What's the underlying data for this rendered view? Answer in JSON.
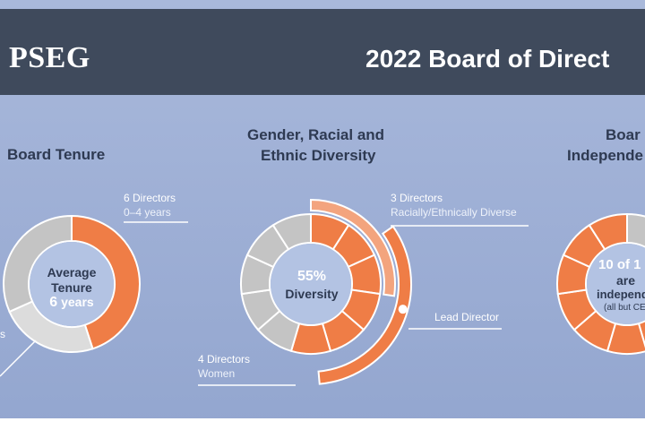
{
  "header": {
    "logo": "PSEG",
    "title": "2022 Board of Direct"
  },
  "tenure": {
    "title": "Board Tenure",
    "center_line1": "Average",
    "center_line2": "Tenure",
    "center_value": "6",
    "center_unit": "years",
    "label_main": "6 Directors",
    "label_sub": "0–4 years",
    "left_fragment": "s"
  },
  "diversity": {
    "title_line1": "Gender, Racial and",
    "title_line2": "Ethnic Diversity",
    "center_value": "55%",
    "center_label": "Diversity",
    "racial_main": "3 Directors",
    "racial_sub": "Racially/Ethnically Diverse",
    "lead_label": "Lead Director",
    "women_main": "4 Directors",
    "women_sub": "Women"
  },
  "independence": {
    "title_line1": "Boar",
    "title_line2": "Independe",
    "center_line1": "10 of 1",
    "center_line2": "are",
    "center_line3": "independ",
    "center_line4": "(all but CE"
  },
  "colors": {
    "orange": "#ef7d46",
    "light_orange": "#f3a47e",
    "gray": "#c4c4c4",
    "light_gray": "#dcdcdc",
    "header": "#3f4a5c",
    "center_fill": "#b3c3e3"
  }
}
